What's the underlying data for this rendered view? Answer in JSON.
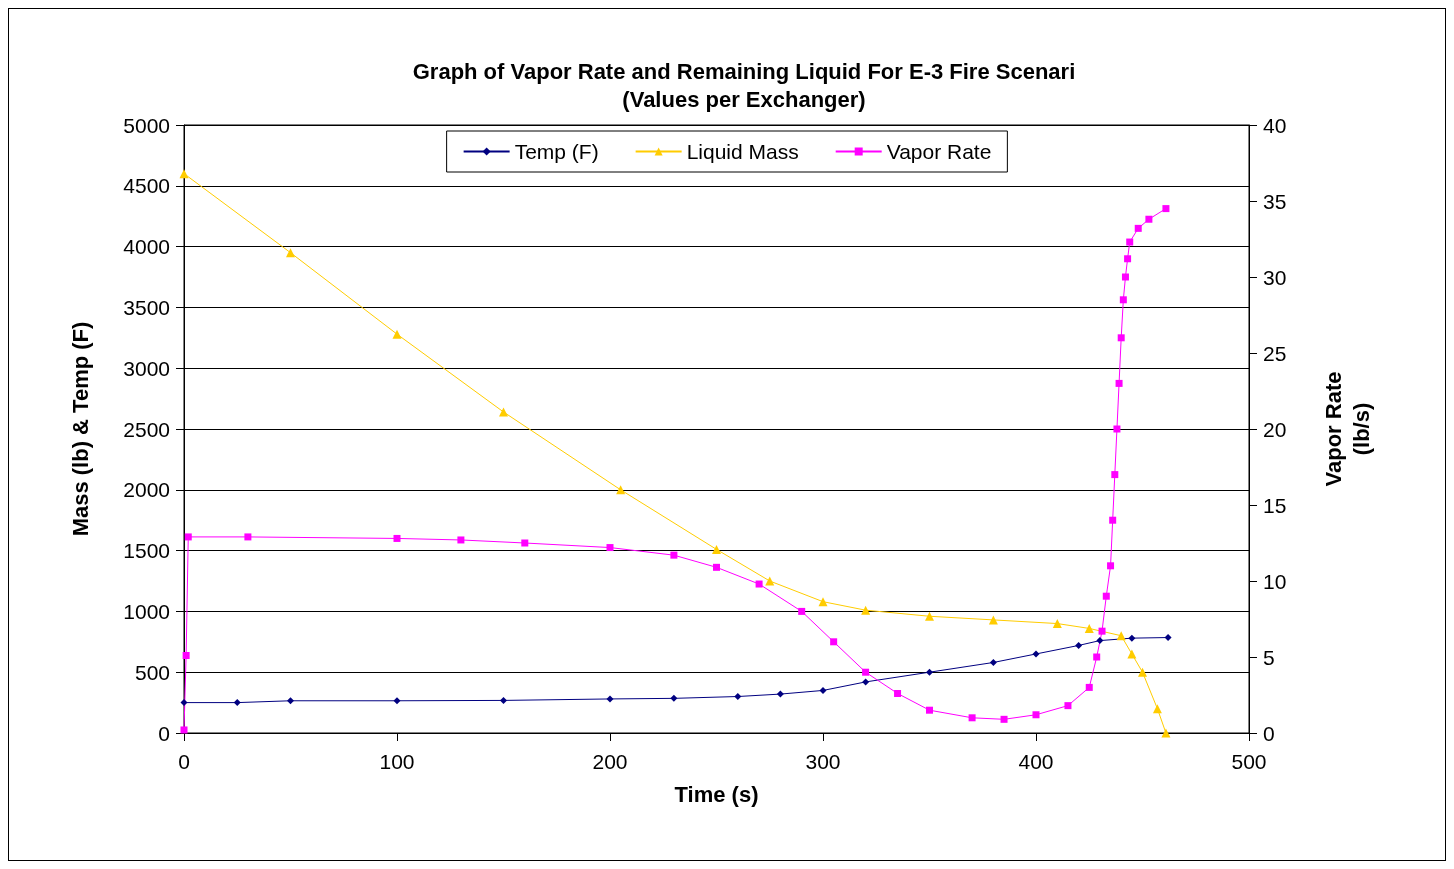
{
  "chart_data": {
    "type": "line",
    "title": "Graph of Vapor Rate and Remaining Liquid For E-3 Fire Scenari",
    "subtitle": "(Values per Exchanger)",
    "xlabel": "Time (s)",
    "ylabel": "Mass (lb) & Temp (F)",
    "y2label": "Vapor Rate\n(lb/s)",
    "xlim": [
      0,
      500
    ],
    "xticks": [
      0,
      100,
      200,
      300,
      400,
      500
    ],
    "ylim": [
      0,
      5000
    ],
    "yticks": [
      0,
      500,
      1000,
      1500,
      2000,
      2500,
      3000,
      3500,
      4000,
      4500,
      5000
    ],
    "y2lim": [
      0,
      40
    ],
    "y2ticks": [
      0,
      5,
      10,
      15,
      20,
      25,
      30,
      35,
      40
    ],
    "grid": "y",
    "legend": "top",
    "series": [
      {
        "name": "Temp (F)",
        "color": "#000080",
        "marker": "diamond",
        "x": [
          0,
          25,
          50,
          100,
          150,
          200,
          230,
          260,
          280,
          300,
          320,
          350,
          380,
          400,
          420,
          430,
          445,
          462
        ],
        "values": [
          250,
          250,
          265,
          265,
          268,
          280,
          285,
          300,
          320,
          350,
          420,
          500,
          580,
          650,
          720,
          760,
          780,
          785
        ]
      },
      {
        "name": "Liquid Mass",
        "color": "#ffcc00",
        "marker": "triangle",
        "x": [
          0,
          50,
          100,
          150,
          205,
          250,
          275,
          300,
          320,
          350,
          380,
          410,
          425,
          440,
          445,
          450,
          457,
          461
        ],
        "values": [
          4600,
          3950,
          3280,
          2640,
          2000,
          1510,
          1250,
          1080,
          1010,
          960,
          930,
          900,
          860,
          800,
          650,
          500,
          200,
          0
        ]
      },
      {
        "name": "Vapor Rate",
        "color": "#ff00ff",
        "marker": "square",
        "axis": "y2",
        "x": [
          0,
          1,
          2,
          30,
          100,
          130,
          160,
          200,
          230,
          250,
          270,
          290,
          305,
          320,
          335,
          350,
          370,
          385,
          400,
          415,
          425,
          428.5,
          431,
          433,
          435,
          436,
          437,
          438,
          439,
          440,
          441,
          442,
          443,
          444,
          448,
          453,
          461
        ],
        "values": [
          0.2,
          5.1,
          12.9,
          12.9,
          12.8,
          12.7,
          12.5,
          12.2,
          11.7,
          10.9,
          9.8,
          8.0,
          6.0,
          4.0,
          2.6,
          1.5,
          1.0,
          0.9,
          1.2,
          1.8,
          3.0,
          5.0,
          6.7,
          9.0,
          11.0,
          14.0,
          17.0,
          20.0,
          23.0,
          26.0,
          28.5,
          30.0,
          31.2,
          32.3,
          33.2,
          33.8,
          34.5
        ]
      }
    ]
  }
}
